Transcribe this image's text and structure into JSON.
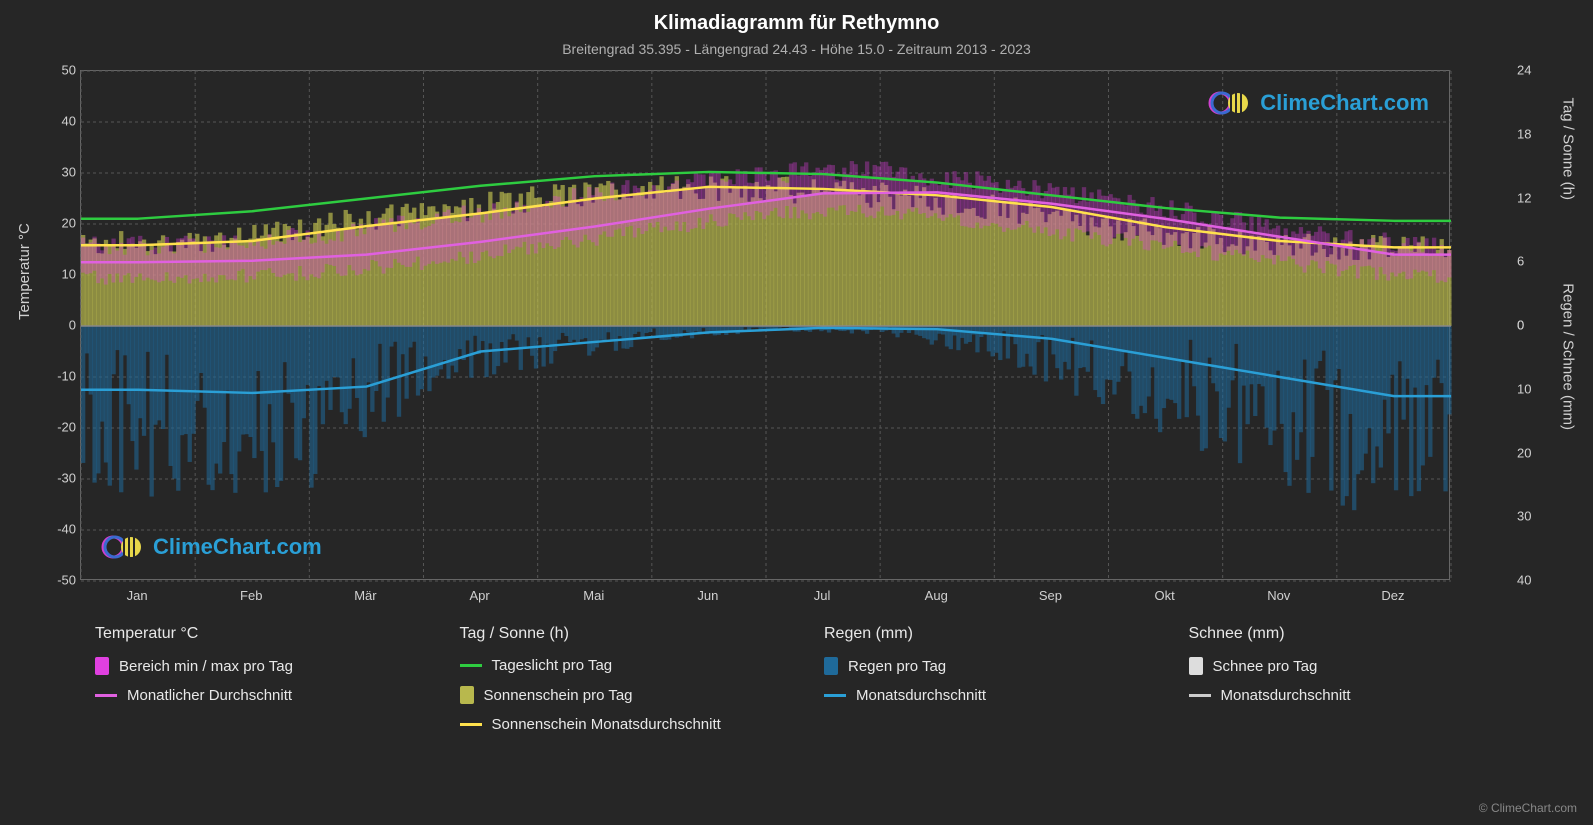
{
  "title": "Klimadiagramm für Rethymno",
  "subtitle": "Breitengrad 35.395 - Längengrad 24.43 - Höhe 15.0 - Zeitraum 2013 - 2023",
  "axis_labels": {
    "left": "Temperatur °C",
    "right_top": "Tag / Sonne (h)",
    "right_bottom": "Regen / Schnee (mm)"
  },
  "months": [
    "Jan",
    "Feb",
    "Mär",
    "Apr",
    "Mai",
    "Jun",
    "Jul",
    "Aug",
    "Sep",
    "Okt",
    "Nov",
    "Dez"
  ],
  "left_axis": {
    "min": -50,
    "max": 50,
    "ticks": [
      -50,
      -40,
      -30,
      -20,
      -10,
      0,
      10,
      20,
      30,
      40,
      50
    ]
  },
  "right_top_axis": {
    "min": 0,
    "max": 24,
    "ticks": [
      0,
      6,
      12,
      18,
      24
    ]
  },
  "right_bottom_axis": {
    "min": 0,
    "max": 40,
    "ticks": [
      0,
      10,
      20,
      30,
      40
    ]
  },
  "colors": {
    "background": "#262626",
    "grid": "#555555",
    "grid_minor": "#3c3c3c",
    "text": "#e0e0e0",
    "daylight_line": "#2ecc40",
    "sunshine_line": "#ffe14d",
    "sunshine_bars": "#b8b84d",
    "temp_range": "#e040e0",
    "temp_avg_line": "#e060e0",
    "rain_line": "#2a9fd6",
    "rain_bars": "#1f6a9a",
    "snow_bars": "#dddddd",
    "snow_line": "#cccccc",
    "logo_text": "#2a9fd6",
    "logo_ring_magenta": "#d040d0",
    "logo_ring_blue": "#3a6ad0",
    "logo_sun": "#e8d84a"
  },
  "series": {
    "daylight_h": [
      10.1,
      10.8,
      12.0,
      13.2,
      14.1,
      14.5,
      14.3,
      13.5,
      12.3,
      11.1,
      10.2,
      9.9
    ],
    "sunshine_h": [
      7.6,
      8.0,
      9.4,
      10.6,
      12.0,
      13.1,
      12.9,
      12.3,
      11.2,
      9.3,
      8.0,
      7.4
    ],
    "temp_avg_c": [
      12.5,
      12.8,
      14.0,
      16.5,
      19.5,
      23.0,
      26.0,
      26.2,
      24.0,
      21.0,
      17.5,
      14.0
    ],
    "temp_min_c": [
      9.5,
      9.5,
      10.5,
      12.5,
      15.5,
      19.0,
      22.0,
      22.5,
      20.0,
      17.0,
      14.0,
      11.0
    ],
    "temp_max_c": [
      15.5,
      16.0,
      17.5,
      20.5,
      24.0,
      27.5,
      30.0,
      30.5,
      28.0,
      25.0,
      21.0,
      17.0
    ],
    "rain_mm": [
      10.0,
      10.5,
      9.5,
      4.0,
      2.5,
      1.0,
      0.3,
      0.5,
      2.0,
      5.0,
      8.0,
      11.0
    ],
    "snow_mm": [
      0,
      0,
      0,
      0,
      0,
      0,
      0,
      0,
      0,
      0,
      0,
      0
    ]
  },
  "legend": {
    "c1": {
      "header": "Temperatur °C",
      "i1": "Bereich min / max pro Tag",
      "i2": "Monatlicher Durchschnitt"
    },
    "c2": {
      "header": "Tag / Sonne (h)",
      "i1": "Tageslicht pro Tag",
      "i2": "Sonnenschein pro Tag",
      "i3": "Sonnenschein Monatsdurchschnitt"
    },
    "c3": {
      "header": "Regen (mm)",
      "i1": "Regen pro Tag",
      "i2": "Monatsdurchschnitt"
    },
    "c4": {
      "header": "Schnee (mm)",
      "i1": "Schnee pro Tag",
      "i2": "Monatsdurchschnitt"
    }
  },
  "logo_text": "ClimeChart.com",
  "copyright": "© ClimeChart.com"
}
